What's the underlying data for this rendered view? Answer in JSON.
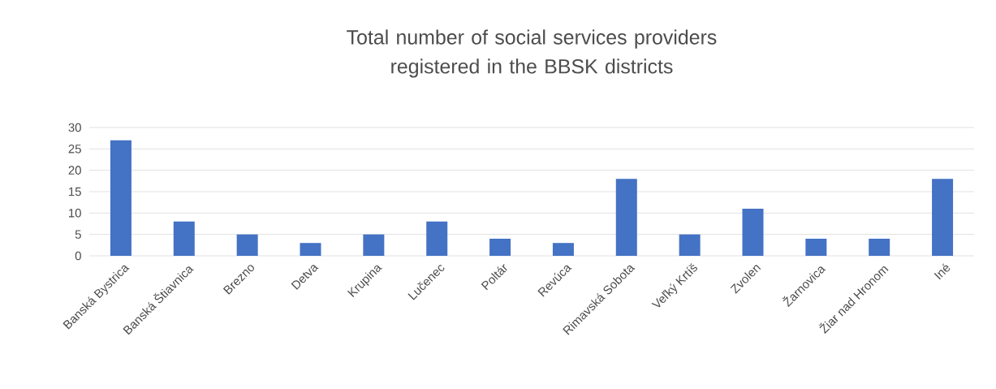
{
  "chart_data": {
    "type": "bar",
    "title": "Total number of social services providers registered in the BBSK districts",
    "categories": [
      "Banská Bystrica",
      "Banská Štiavnica",
      "Brezno",
      "Detva",
      "Krupina",
      "Lučenec",
      "Poltár",
      "Revúca",
      "Rimavská Sobota",
      "Veľký Krtíš",
      "Zvolen",
      "Žarnovica",
      "Žiar nad Hronom",
      "Iné"
    ],
    "values": [
      27,
      8,
      5,
      3,
      5,
      8,
      4,
      3,
      18,
      5,
      11,
      4,
      4,
      18
    ],
    "color": "#4472c4",
    "ylim": [
      0,
      30
    ],
    "yticks": [
      0,
      5,
      10,
      15,
      20,
      25,
      30
    ],
    "grid": "y"
  }
}
